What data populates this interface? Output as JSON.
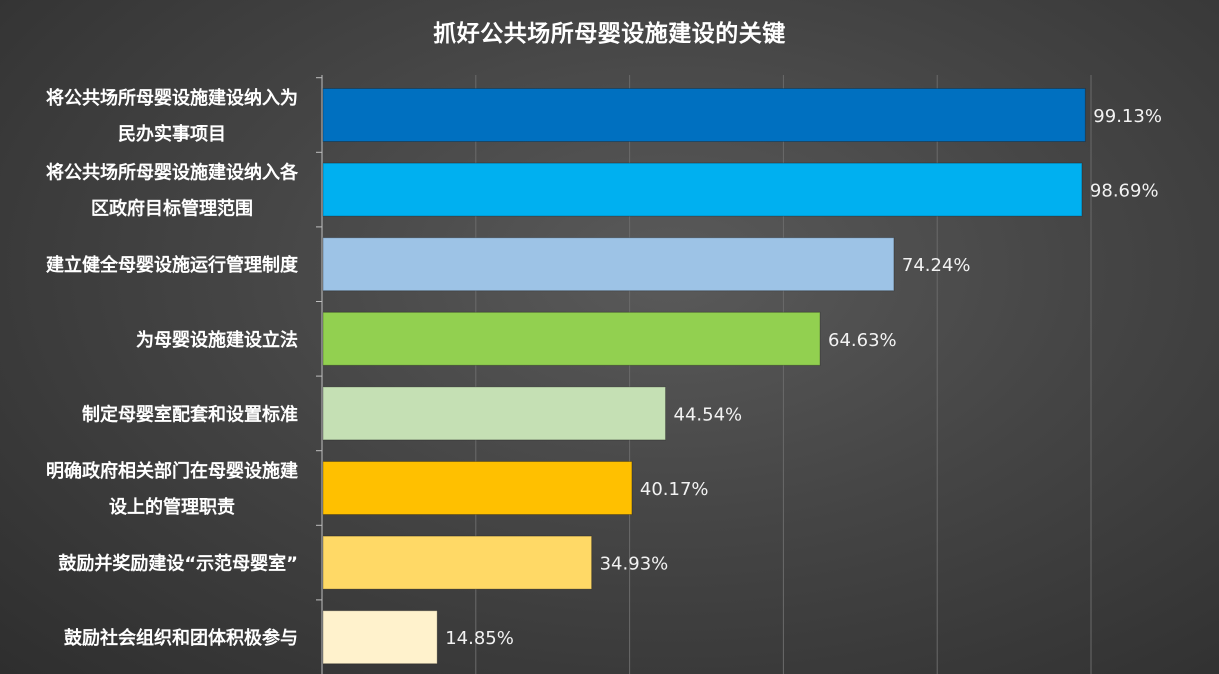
{
  "chart_data": {
    "type": "bar",
    "orientation": "horizontal",
    "title": "抓好公共场所母婴设施建设的关键",
    "grid": true,
    "legend": "none",
    "xlim": [
      0,
      100
    ],
    "categories": [
      [
        "将公共场所母婴设施建设纳入为",
        "民办实事项目"
      ],
      [
        "将公共场所母婴设施建设纳入各",
        "区政府目标管理范围"
      ],
      [
        "建立健全母婴设施运行管理制度"
      ],
      [
        "为母婴设施建设立法"
      ],
      [
        "制定母婴室配套和设置标准"
      ],
      [
        "明确政府相关部门在母婴设施建",
        "设上的管理职责"
      ],
      [
        "鼓励并奖励建设“示范母婴室”"
      ],
      [
        "鼓励社会组织和团体积极参与"
      ]
    ],
    "values": [
      99.13,
      98.69,
      74.24,
      64.63,
      44.54,
      40.17,
      34.93,
      14.85
    ],
    "value_labels": [
      "99.13%",
      "98.69%",
      "74.24%",
      "64.63%",
      "44.54%",
      "40.17%",
      "34.93%",
      "14.85%"
    ],
    "colors": [
      "#0070C0",
      "#00B0F0",
      "#9DC3E6",
      "#92D050",
      "#C5E0B4",
      "#FFC000",
      "#FFD966",
      "#FFF2CC"
    ]
  }
}
